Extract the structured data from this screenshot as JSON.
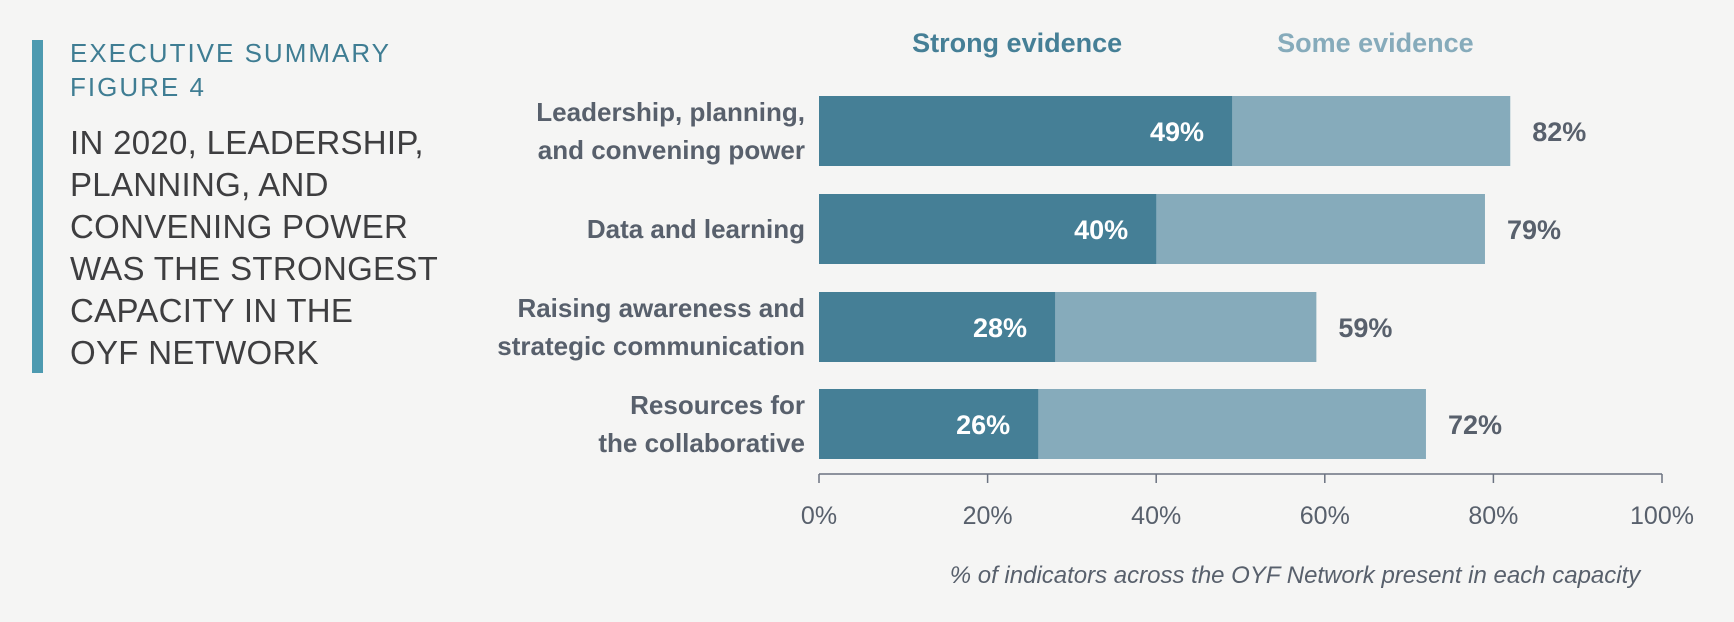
{
  "sidebar": {
    "kicker_line1": "EXECUTIVE SUMMARY",
    "kicker_line2": "FIGURE 4",
    "headline_lines": [
      "IN 2020, LEADERSHIP,",
      "PLANNING, AND",
      "CONVENING POWER",
      "WAS THE STRONGEST",
      "CAPACITY IN THE",
      "OYF NETWORK"
    ]
  },
  "colors": {
    "accent_bar": "#4d9ab0",
    "strong": "#457f96",
    "some": "#86abbb",
    "label_text": "#58606c",
    "kicker_text": "#3f7d93",
    "headline_text": "#3e3e40",
    "axis": "#6b7280"
  },
  "chart_data": {
    "type": "bar",
    "orientation": "horizontal",
    "stacked_overlay": true,
    "title": "",
    "categories": [
      [
        "Leadership, planning,",
        "and convening power"
      ],
      [
        "Data and learning"
      ],
      [
        "Raising awareness and",
        "strategic communication"
      ],
      [
        "Resources for",
        "the collaborative"
      ]
    ],
    "series": [
      {
        "name": "Strong evidence",
        "values": [
          49,
          40,
          28,
          26
        ],
        "labels": [
          "49%",
          "40%",
          "28%",
          "26%"
        ]
      },
      {
        "name": "Some evidence",
        "values": [
          82,
          79,
          59,
          72
        ],
        "labels": [
          "82%",
          "79%",
          "59%",
          "72%"
        ]
      }
    ],
    "xlim": [
      0,
      100
    ],
    "xticks": [
      "0%",
      "20%",
      "40%",
      "60%",
      "80%",
      "100%"
    ],
    "xlabel": "% of indicators across the OYF Network present in each capacity",
    "legend_position": "top",
    "grid": false
  }
}
